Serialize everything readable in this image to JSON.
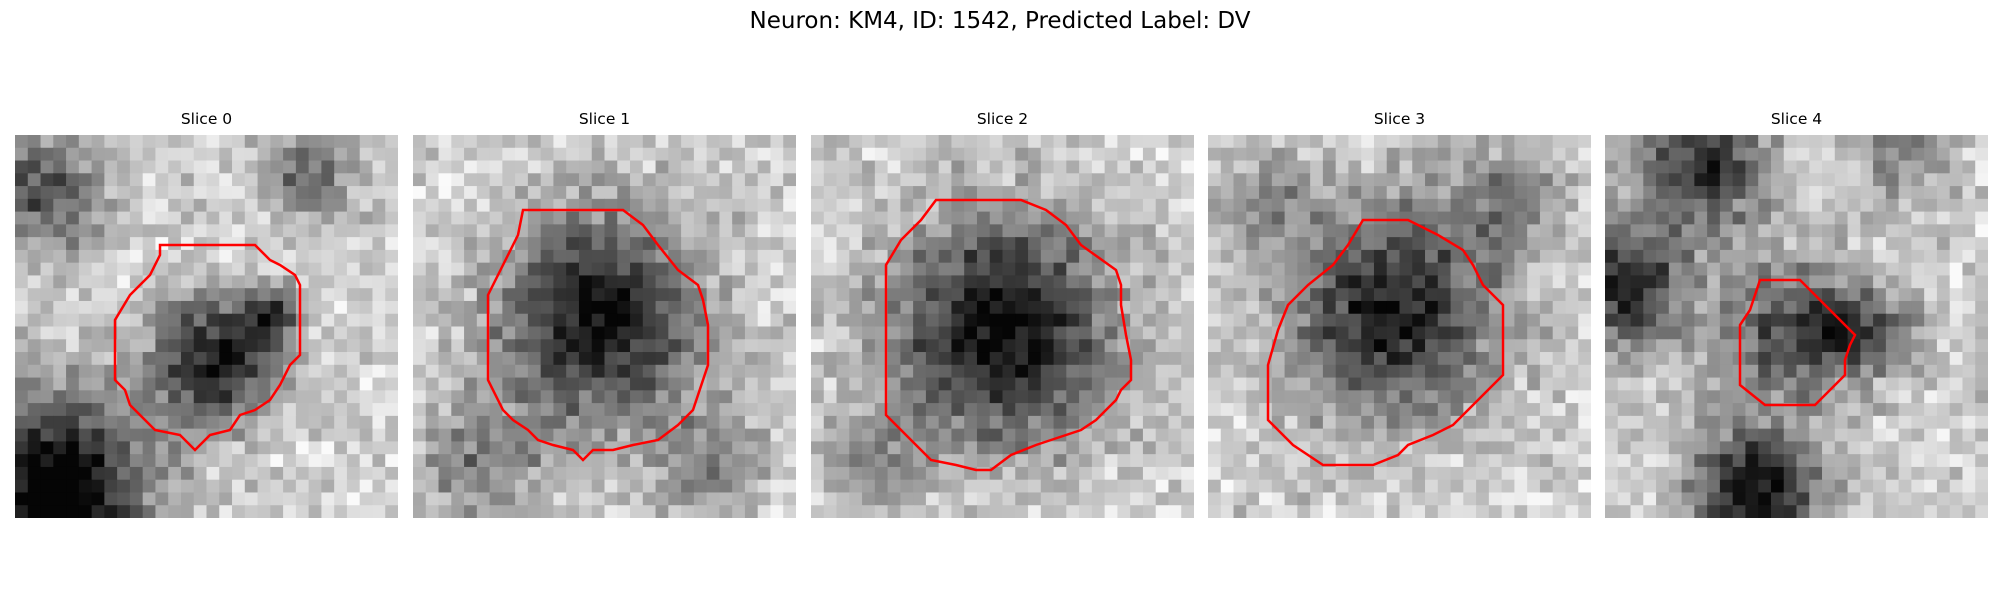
{
  "figure": {
    "title": "Neuron: KM4, ID: 1542, Predicted Label: DV",
    "contour_color": "#ff0000",
    "colormap": "gray",
    "grid_size": 30
  },
  "slices": [
    {
      "label": "Slice 0",
      "seed": 11
    },
    {
      "label": "Slice 1",
      "seed": 23
    },
    {
      "label": "Slice 2",
      "seed": 37
    },
    {
      "label": "Slice 3",
      "seed": 51
    },
    {
      "label": "Slice 4",
      "seed": 67
    }
  ]
}
